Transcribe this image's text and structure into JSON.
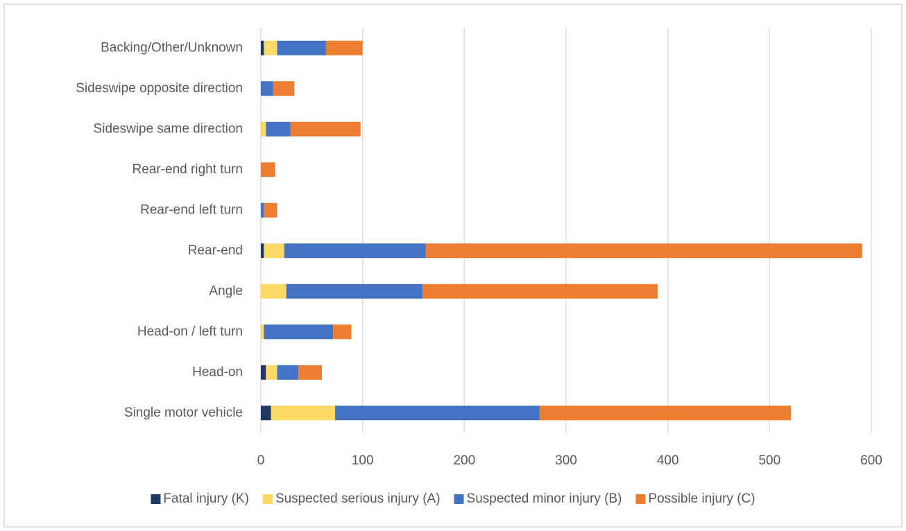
{
  "chart_data": {
    "type": "stacked_barh",
    "categories": [
      "Single motor vehicle",
      "Head-on",
      "Head-on / left turn",
      "Angle",
      "Rear-end",
      "Rear-end left turn",
      "Rear-end right turn",
      "Sideswipe same direction",
      "Sideswipe opposite direction",
      "Backing/Other/Unknown"
    ],
    "series": [
      {
        "name": "Fatal injury (K)",
        "color": "#203864",
        "values": [
          10,
          5,
          0,
          0,
          3,
          0,
          0,
          0,
          0,
          3
        ]
      },
      {
        "name": "Suspected serious injury (A)",
        "color": "#ffd966",
        "values": [
          63,
          11,
          3,
          25,
          20,
          0,
          0,
          5,
          0,
          13
        ]
      },
      {
        "name": "Suspected minor injury (B)",
        "color": "#4472c4",
        "values": [
          201,
          21,
          68,
          134,
          139,
          3,
          0,
          24,
          12,
          48
        ]
      },
      {
        "name": "Possible injury (C)",
        "color": "#ed7d31",
        "values": [
          247,
          23,
          18,
          231,
          429,
          13,
          14,
          69,
          21,
          36
        ]
      }
    ],
    "xlim": [
      0,
      600
    ],
    "xticks": [
      0,
      100,
      200,
      300,
      400,
      500,
      600
    ],
    "grid": true,
    "legend": "bottom"
  }
}
